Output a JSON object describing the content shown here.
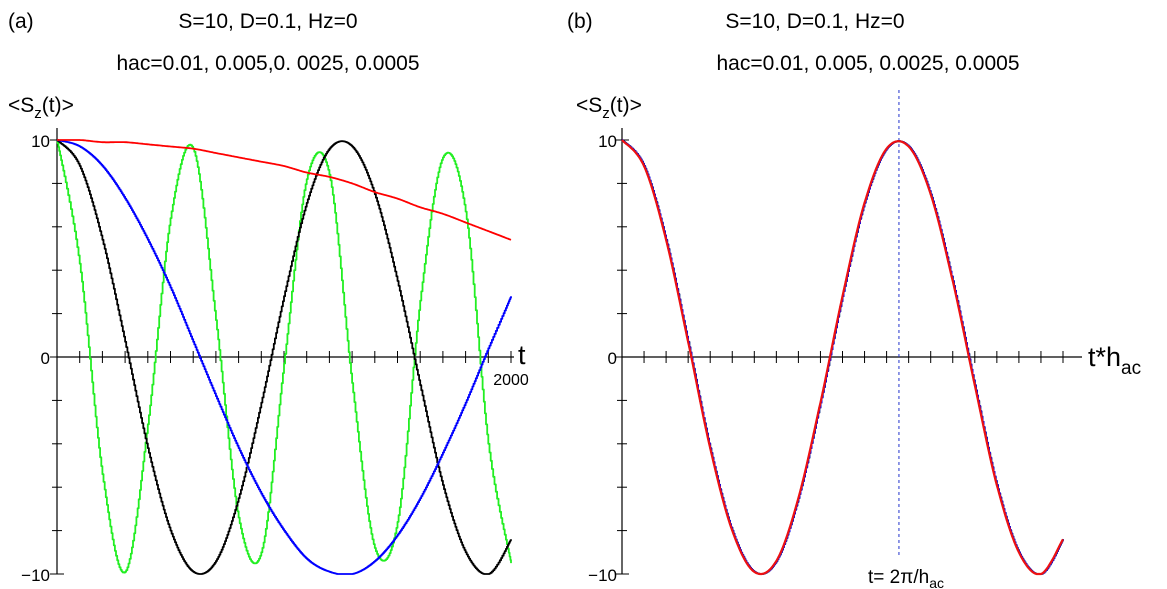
{
  "chart_data": [
    {
      "type": "line",
      "panel_label": "(a)",
      "title": "S=10, D=0.1,  Hz=0",
      "subtitle": "hac=0.01, 0.005,0. 0025, 0.0005",
      "ylabel_main": "<S",
      "ylabel_sub": "z",
      "ylabel_tail": "(t)>",
      "xlabel": "t",
      "xlim": [
        0,
        2000
      ],
      "ylim": [
        -10,
        10
      ],
      "y_tick_labels": [
        "10",
        "0",
        "−10"
      ],
      "x_tick_label": "2000",
      "series": [
        {
          "hac": 0.01,
          "color": "#22ee22",
          "x": [
            0,
            100,
            200,
            300,
            400,
            500,
            600,
            700,
            800,
            900,
            1000,
            1100,
            1200,
            1300,
            1400,
            1500,
            1600,
            1700,
            1800,
            1900,
            2000
          ],
          "y": [
            10,
            4.3,
            -5.4,
            -9.9,
            -3.1,
            6.4,
            9.6,
            1.7,
            -7.4,
            -9.0,
            -0.3,
            8.2,
            8.4,
            -1.2,
            -8.8,
            -7.6,
            2.6,
            9.2,
            6.7,
            -4.0,
            -9.5
          ]
        },
        {
          "hac": 0.005,
          "color": "#000000",
          "x": [
            0,
            100,
            200,
            300,
            400,
            500,
            600,
            700,
            800,
            900,
            1000,
            1100,
            1200,
            1300,
            1400,
            1500,
            1600,
            1700,
            1800,
            1900,
            2000
          ],
          "y": [
            10,
            8.8,
            5.4,
            0.7,
            -4.2,
            -8.0,
            -9.9,
            -9.4,
            -6.5,
            -2.1,
            2.8,
            7.1,
            9.6,
            9.7,
            7.5,
            3.5,
            -1.3,
            -5.9,
            -9.0,
            -10.0,
            -8.4
          ]
        },
        {
          "hac": 0.0025,
          "color": "#0000ff",
          "x": [
            0,
            100,
            200,
            300,
            400,
            500,
            600,
            700,
            800,
            900,
            1000,
            1100,
            1200,
            1300,
            1400,
            1500,
            1600,
            1700,
            1800,
            1900,
            2000
          ],
          "y": [
            10,
            9.7,
            8.8,
            7.3,
            5.4,
            3.2,
            0.7,
            -1.8,
            -4.2,
            -6.3,
            -8.0,
            -9.3,
            -9.9,
            -10.0,
            -9.4,
            -8.2,
            -6.5,
            -4.4,
            -2.1,
            0.4,
            2.8
          ]
        },
        {
          "hac": 0.0005,
          "color": "#ff0000",
          "x": [
            0,
            100,
            200,
            300,
            400,
            500,
            600,
            700,
            800,
            900,
            1000,
            1100,
            1200,
            1300,
            1400,
            1500,
            1600,
            1700,
            1800,
            1900,
            2000
          ],
          "y": [
            10,
            10,
            9.9,
            9.9,
            9.8,
            9.7,
            9.6,
            9.4,
            9.2,
            9.0,
            8.8,
            8.5,
            8.3,
            8.0,
            7.6,
            7.3,
            6.9,
            6.6,
            6.2,
            5.8,
            5.4
          ]
        }
      ]
    },
    {
      "type": "line",
      "panel_label": "(b)",
      "title": "S=10, D=0.1,  Hz=0",
      "subtitle": "hac=0.01, 0.005, 0.0025, 0.0005",
      "ylabel_main": "<S",
      "ylabel_sub": "z",
      "ylabel_tail": "(t)>",
      "xlabel_main": "t*h",
      "xlabel_sub": "ac",
      "xlim": [
        0,
        10
      ],
      "ylim": [
        -10,
        10
      ],
      "y_tick_labels": [
        "10",
        "0",
        "−10"
      ],
      "annotation_main": "t= 2π/h",
      "annotation_sub": "ac",
      "marker_x": 6.28,
      "series": [
        {
          "hac": 0.01,
          "color": "#22ee22",
          "x": [
            0,
            0.5,
            1,
            1.5,
            2,
            2.5,
            3,
            3.5,
            4,
            4.5,
            5,
            5.5,
            6,
            6.5,
            7,
            7.5,
            8,
            8.5,
            9,
            9.5,
            10
          ],
          "y": [
            10,
            8.8,
            5.4,
            0.7,
            -4.2,
            -8.0,
            -9.9,
            -9.4,
            -6.5,
            -2.1,
            2.8,
            7.1,
            9.6,
            9.7,
            7.5,
            3.5,
            -1.3,
            -5.9,
            -9.0,
            -10.0,
            -8.4
          ]
        },
        {
          "hac": 0.005,
          "color": "#000000",
          "x": [
            0,
            0.5,
            1,
            1.5,
            2,
            2.5,
            3,
            3.5,
            4,
            4.5,
            5,
            5.5,
            6,
            6.5,
            7,
            7.5,
            8,
            8.5,
            9,
            9.5,
            10
          ],
          "y": [
            10,
            8.8,
            5.4,
            0.7,
            -4.2,
            -8.0,
            -9.9,
            -9.4,
            -6.5,
            -2.1,
            2.8,
            7.1,
            9.6,
            9.7,
            7.5,
            3.5,
            -1.3,
            -5.9,
            -9.0,
            -10.0,
            -8.4
          ]
        },
        {
          "hac": 0.0025,
          "color": "#0000ff",
          "x": [
            0,
            0.5,
            1,
            1.5,
            2,
            2.5,
            3,
            3.5,
            4,
            4.5,
            5,
            5.5,
            6,
            6.5,
            7,
            7.5,
            8,
            8.5,
            9,
            9.5,
            10
          ],
          "y": [
            10,
            8.8,
            5.4,
            0.7,
            -4.2,
            -8.0,
            -9.9,
            -9.4,
            -6.5,
            -2.1,
            2.8,
            7.1,
            9.6,
            9.7,
            7.5,
            3.5,
            -1.3,
            -5.9,
            -9.0,
            -10.0,
            -8.4
          ]
        },
        {
          "hac": 0.0005,
          "color": "#ee1111",
          "x": [
            0,
            0.5,
            1,
            1.5,
            2,
            2.5,
            3,
            3.5,
            4,
            4.5,
            5,
            5.5,
            6,
            6.5,
            7,
            7.5,
            8,
            8.5,
            9,
            9.5,
            10
          ],
          "y": [
            10,
            8.8,
            5.4,
            0.7,
            -4.2,
            -8.0,
            -9.9,
            -9.4,
            -6.5,
            -2.1,
            2.8,
            7.1,
            9.6,
            9.7,
            7.5,
            3.5,
            -1.3,
            -5.9,
            -9.0,
            -10.0,
            -8.4
          ]
        }
      ]
    }
  ]
}
